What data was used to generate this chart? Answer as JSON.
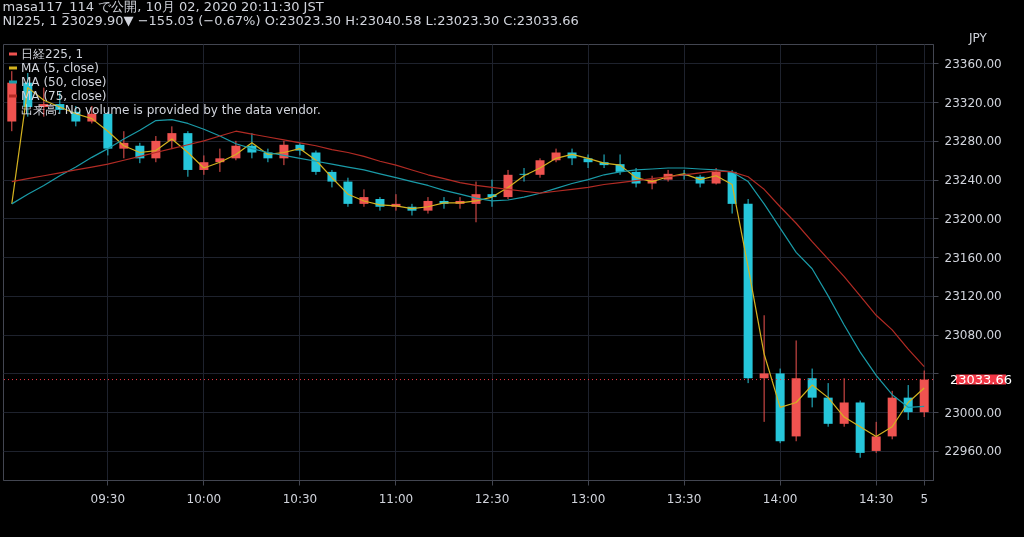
{
  "chart_data": {
    "type": "candlestick",
    "title": "masa117_114 で公開, 10月 02, 2020 20:11:30 JST",
    "subtitle": "NI225, 1 23029.90▼ −155.03 (−0.67%) O:23023.30 H:23040.58 L:23023.30 C:23033.66",
    "categories": [
      null,
      null,
      null,
      null,
      null,
      null,
      "09:30",
      null,
      null,
      null,
      null,
      null,
      "10:00",
      null,
      null,
      null,
      null,
      null,
      "10:30",
      null,
      null,
      null,
      null,
      null,
      "11:00",
      null,
      null,
      null,
      null,
      null,
      "12:30",
      null,
      null,
      null,
      null,
      null,
      "13:00",
      null,
      null,
      null,
      null,
      null,
      "13:30",
      null,
      null,
      null,
      null,
      null,
      "14:00",
      null,
      null,
      null,
      null,
      null,
      "14:30",
      null,
      null,
      "5"
    ],
    "series": [
      {
        "name": "日経225, 1",
        "type": "candlestick",
        "color": "#ef5350",
        "ohlc": [
          [
            23300,
            23352,
            23290,
            23340
          ],
          [
            23340,
            23350,
            23305,
            23315
          ],
          [
            23315,
            23335,
            23305,
            23318
          ],
          [
            23318,
            23330,
            23308,
            23312
          ],
          [
            23310,
            23316,
            23295,
            23300
          ],
          [
            23300,
            23316,
            23298,
            23308
          ],
          [
            23308,
            23310,
            23265,
            23272
          ],
          [
            23272,
            23290,
            23262,
            23278
          ],
          [
            23275,
            23278,
            23257,
            23262
          ],
          [
            23262,
            23285,
            23258,
            23280
          ],
          [
            23280,
            23295,
            23272,
            23288
          ],
          [
            23288,
            23290,
            23243,
            23250
          ],
          [
            23250,
            23265,
            23245,
            23258
          ],
          [
            23258,
            23272,
            23248,
            23262
          ],
          [
            23262,
            23280,
            23260,
            23275
          ],
          [
            23275,
            23288,
            23262,
            23268
          ],
          [
            23268,
            23272,
            23258,
            23262
          ],
          [
            23262,
            23280,
            23255,
            23276
          ],
          [
            23276,
            23278,
            23265,
            23270
          ],
          [
            23268,
            23270,
            23245,
            23248
          ],
          [
            23248,
            23250,
            23232,
            23238
          ],
          [
            23238,
            23242,
            23212,
            23215
          ],
          [
            23215,
            23230,
            23212,
            23222
          ],
          [
            23220,
            23222,
            23208,
            23212
          ],
          [
            23212,
            23225,
            23208,
            23215
          ],
          [
            23212,
            23215,
            23203,
            23208
          ],
          [
            23208,
            23222,
            23205,
            23218
          ],
          [
            23218,
            23222,
            23210,
            23215
          ],
          [
            23215,
            23222,
            23210,
            23218
          ],
          [
            23215,
            23238,
            23196,
            23225
          ],
          [
            23225,
            23240,
            23212,
            23222
          ],
          [
            23222,
            23250,
            23220,
            23245
          ],
          [
            23245,
            23252,
            23238,
            23246
          ],
          [
            23245,
            23262,
            23242,
            23260
          ],
          [
            23260,
            23272,
            23258,
            23268
          ],
          [
            23268,
            23272,
            23255,
            23262
          ],
          [
            23262,
            23266,
            23252,
            23258
          ],
          [
            23258,
            23266,
            23252,
            23255
          ],
          [
            23256,
            23266,
            23245,
            23248
          ],
          [
            23248,
            23252,
            23232,
            23236
          ],
          [
            23236,
            23244,
            23230,
            23240
          ],
          [
            23240,
            23250,
            23238,
            23246
          ],
          [
            23246,
            23250,
            23240,
            23244
          ],
          [
            23243,
            23245,
            23232,
            23236
          ],
          [
            23236,
            23252,
            23235,
            23248
          ],
          [
            23248,
            23250,
            23205,
            23215
          ],
          [
            23215,
            23220,
            23030,
            23035
          ],
          [
            23035,
            23100,
            22990,
            23040
          ],
          [
            23040,
            23045,
            22968,
            22970
          ],
          [
            22975,
            23074,
            22970,
            23035
          ],
          [
            23035,
            23045,
            23005,
            23015
          ],
          [
            23015,
            23030,
            22985,
            22988
          ],
          [
            22988,
            23035,
            22985,
            23010
          ],
          [
            23010,
            23012,
            22953,
            22958
          ],
          [
            22960,
            22990,
            22958,
            22975
          ],
          [
            22975,
            23022,
            22972,
            23015
          ],
          [
            23015,
            23028,
            22992,
            23000
          ],
          [
            23000,
            23043,
            22995,
            23033.66
          ]
        ],
        "colors": [
          "#ef5350",
          "#26c6da",
          "#ef5350",
          "#26c6da",
          "#26c6da",
          "#ef5350",
          "#26c6da",
          "#ef5350",
          "#26c6da",
          "#ef5350",
          "#ef5350",
          "#26c6da",
          "#ef5350",
          "#ef5350",
          "#ef5350",
          "#26c6da",
          "#26c6da",
          "#ef5350",
          "#26c6da",
          "#26c6da",
          "#26c6da",
          "#26c6da",
          "#ef5350",
          "#26c6da",
          "#ef5350",
          "#26c6da",
          "#ef5350",
          "#26c6da",
          "#ef5350",
          "#ef5350",
          "#26c6da",
          "#ef5350",
          "#26c6da",
          "#ef5350",
          "#ef5350",
          "#26c6da",
          "#26c6da",
          "#26c6da",
          "#26c6da",
          "#26c6da",
          "#ef5350",
          "#ef5350",
          "#26c6da",
          "#26c6da",
          "#ef5350",
          "#26c6da",
          "#26c6da",
          "#ef5350",
          "#26c6da",
          "#ef5350",
          "#26c6da",
          "#26c6da",
          "#ef5350",
          "#26c6da",
          "#ef5350",
          "#ef5350",
          "#26c6da",
          "#ef5350"
        ]
      },
      {
        "name": "MA (5, close)",
        "type": "line",
        "color": "#d4b21f",
        "values": [
          23215,
          23335,
          23322,
          23315,
          23308,
          23303,
          23290,
          23275,
          23268,
          23270,
          23282,
          23268,
          23252,
          23258,
          23266,
          23278,
          23266,
          23268,
          23272,
          23260,
          23242,
          23225,
          23218,
          23214,
          23213,
          23210,
          23212,
          23216,
          23216,
          23218,
          23222,
          23232,
          23244,
          23252,
          23262,
          23266,
          23262,
          23257,
          23255,
          23242,
          23238,
          23243,
          23246,
          23240,
          23244,
          23235,
          23150,
          23060,
          23005,
          23010,
          23028,
          23015,
          22995,
          22985,
          22975,
          22985,
          23010,
          23025
        ]
      },
      {
        "name": "MA (50, close)",
        "type": "line",
        "color": "#1a9ba8",
        "values": [
          23215,
          23225,
          23234,
          23244,
          23253,
          23263,
          23272,
          23282,
          23291,
          23301,
          23302,
          23298,
          23292,
          23285,
          23277,
          23272,
          23268,
          23265,
          23262,
          23259,
          23256,
          23253,
          23250,
          23246,
          23242,
          23238,
          23234,
          23229,
          23225,
          23221,
          23218,
          23219,
          23222,
          23226,
          23231,
          23236,
          23240,
          23245,
          23248,
          23250,
          23251,
          23252,
          23252,
          23251,
          23250,
          23248,
          23238,
          23215,
          23190,
          23165,
          23148,
          23120,
          23090,
          23062,
          23038,
          23018,
          23005,
          23006
        ]
      },
      {
        "name": "MA (75, close)",
        "type": "line",
        "color": "#b22b24",
        "values": [
          23238,
          23241,
          23244,
          23247,
          23250,
          23253,
          23256,
          23260,
          23264,
          23268,
          23272,
          23276,
          23280,
          23285,
          23290,
          23287,
          23284,
          23281,
          23278,
          23275,
          23271,
          23268,
          23264,
          23259,
          23255,
          23250,
          23245,
          23241,
          23237,
          23234,
          23232,
          23230,
          23228,
          23226,
          23228,
          23230,
          23232,
          23235,
          23237,
          23239,
          23241,
          23243,
          23245,
          23247,
          23249,
          23248,
          23243,
          23230,
          23212,
          23195,
          23176,
          23158,
          23140,
          23120,
          23100,
          23085,
          23065,
          23047
        ]
      }
    ],
    "ylim": [
      22930,
      23380
    ],
    "yticks": [
      {
        "value": 22960,
        "label": "22960.00"
      },
      {
        "value": 23000,
        "label": "23000.00"
      },
      {
        "value": 23040,
        "label": null
      },
      {
        "value": 23080,
        "label": "23080.00"
      },
      {
        "value": 23120,
        "label": "23120.00"
      },
      {
        "value": 23160,
        "label": "23160.00"
      },
      {
        "value": 23200,
        "label": "23200.00"
      },
      {
        "value": 23240,
        "label": "23240.00"
      },
      {
        "value": 23280,
        "label": "23280.00"
      },
      {
        "value": 23320,
        "label": "23320.00"
      },
      {
        "value": 23360,
        "label": "23360.00"
      }
    ],
    "ref_lines": [
      {
        "axis": "y",
        "value": 23033.66,
        "label": "23033.66",
        "color": "#f23645",
        "line_style": "dotted"
      }
    ],
    "annotations": [
      "出来高: No volume is provided by the data vendor.",
      "JPY"
    ],
    "grid": true,
    "legend": "top left",
    "marker": "none",
    "line_style": "solid"
  }
}
